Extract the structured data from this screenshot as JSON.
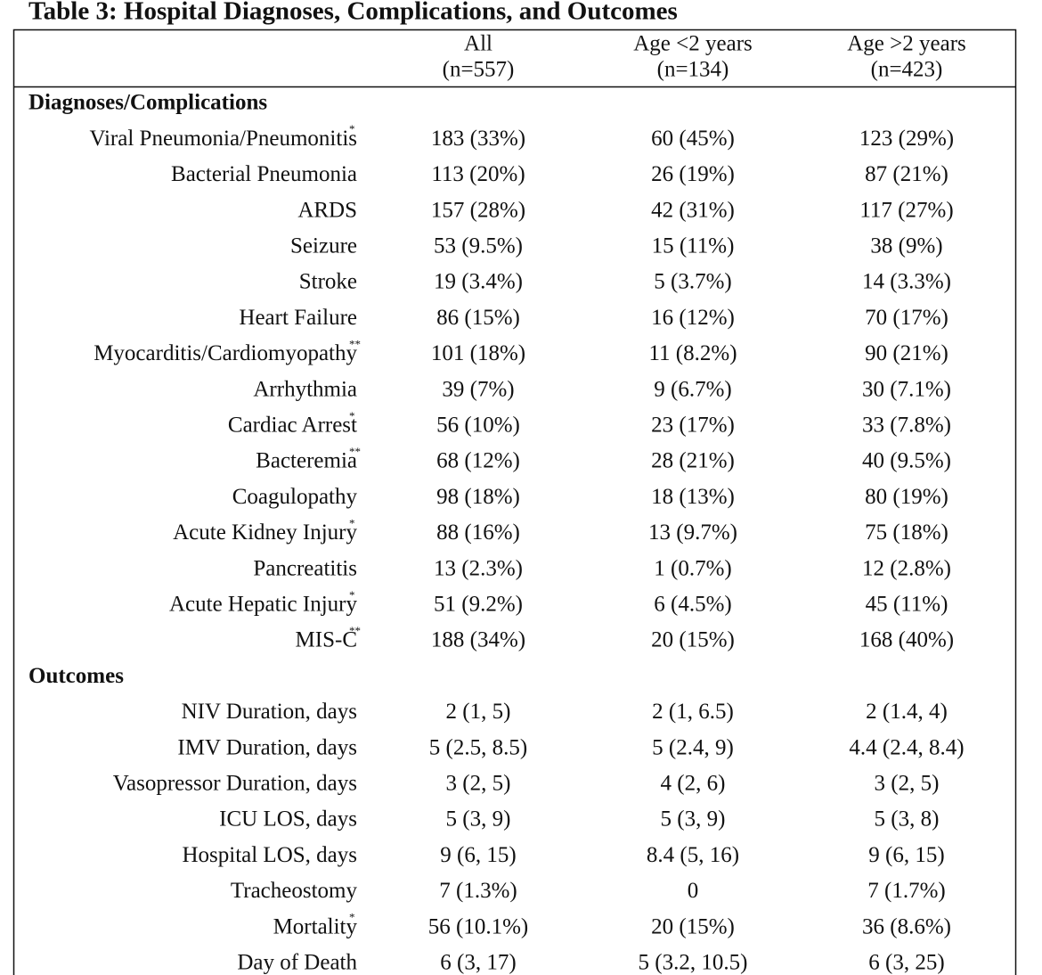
{
  "title": "Table 3: Hospital Diagnoses, Complications, and Outcomes",
  "table": {
    "columns": [
      {
        "label": "All",
        "n": "(n=557)"
      },
      {
        "label": "Age <2 years",
        "n": "(n=134)"
      },
      {
        "label": "Age >2 years",
        "n": "(n=423)"
      }
    ],
    "sections": [
      {
        "heading": "Diagnoses/Complications",
        "rows": [
          {
            "label": "Viral Pneumonia/Pneumonitis",
            "note": "*",
            "cells": [
              "183 (33%)",
              "60 (45%)",
              "123 (29%)"
            ]
          },
          {
            "label": "Bacterial Pneumonia",
            "cells": [
              "113 (20%)",
              "26 (19%)",
              "87 (21%)"
            ]
          },
          {
            "label": "ARDS",
            "cells": [
              "157 (28%)",
              "42 (31%)",
              "117 (27%)"
            ]
          },
          {
            "label": "Seizure",
            "cells": [
              "53 (9.5%)",
              "15 (11%)",
              "38 (9%)"
            ]
          },
          {
            "label": "Stroke",
            "cells": [
              "19 (3.4%)",
              "5 (3.7%)",
              "14 (3.3%)"
            ]
          },
          {
            "label": "Heart Failure",
            "cells": [
              "86 (15%)",
              "16 (12%)",
              "70 (17%)"
            ]
          },
          {
            "label": "Myocarditis/Cardiomyopathy",
            "note": "**",
            "cells": [
              "101 (18%)",
              "11 (8.2%)",
              "90 (21%)"
            ]
          },
          {
            "label": "Arrhythmia",
            "cells": [
              "39 (7%)",
              "9 (6.7%)",
              "30 (7.1%)"
            ]
          },
          {
            "label": "Cardiac Arrest",
            "note": "*",
            "cells": [
              "56 (10%)",
              "23 (17%)",
              "33 (7.8%)"
            ]
          },
          {
            "label": "Bacteremia",
            "note": "**",
            "cells": [
              "68 (12%)",
              "28 (21%)",
              "40 (9.5%)"
            ]
          },
          {
            "label": "Coagulopathy",
            "cells": [
              "98 (18%)",
              "18 (13%)",
              "80 (19%)"
            ]
          },
          {
            "label": "Acute Kidney Injury",
            "note": "*",
            "cells": [
              "88 (16%)",
              "13 (9.7%)",
              "75 (18%)"
            ]
          },
          {
            "label": "Pancreatitis",
            "cells": [
              "13 (2.3%)",
              "1 (0.7%)",
              "12 (2.8%)"
            ]
          },
          {
            "label": "Acute Hepatic Injury",
            "note": "*",
            "cells": [
              "51 (9.2%)",
              "6 (4.5%)",
              "45 (11%)"
            ]
          },
          {
            "label": "MIS-C",
            "note": "**",
            "cells": [
              "188 (34%)",
              "20 (15%)",
              "168 (40%)"
            ]
          }
        ]
      },
      {
        "heading": "Outcomes",
        "rows": [
          {
            "label": "NIV Duration, days",
            "cells": [
              "2 (1, 5)",
              "2 (1, 6.5)",
              "2 (1.4, 4)"
            ]
          },
          {
            "label": "IMV Duration, days",
            "cells": [
              "5 (2.5, 8.5)",
              "5 (2.4, 9)",
              "4.4 (2.4, 8.4)"
            ]
          },
          {
            "label": "Vasopressor Duration, days",
            "cells": [
              "3 (2, 5)",
              "4 (2, 6)",
              "3 (2, 5)"
            ]
          },
          {
            "label": "ICU LOS, days",
            "cells": [
              "5 (3, 9)",
              "5 (3, 9)",
              "5 (3, 8)"
            ]
          },
          {
            "label": "Hospital LOS, days",
            "cells": [
              "9 (6, 15)",
              "8.4 (5, 16)",
              "9 (6, 15)"
            ]
          },
          {
            "label": "Tracheostomy",
            "cells": [
              "7 (1.3%)",
              "0",
              "7 (1.7%)"
            ]
          },
          {
            "label": "Mortality",
            "note": "*",
            "cells": [
              "56 (10.1%)",
              "20 (15%)",
              "36 (8.6%)"
            ]
          },
          {
            "label": "Day of Death",
            "cells": [
              "6 (3, 17)",
              "5 (3.2, 10.5)",
              "6 (3, 25)"
            ]
          }
        ]
      }
    ]
  }
}
